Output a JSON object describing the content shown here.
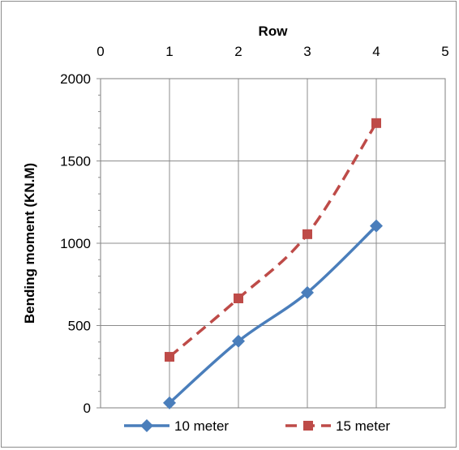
{
  "chart_data": {
    "type": "line",
    "xlabel": "Row",
    "ylabel": "Bending moment (KN.M)",
    "xlim": [
      0,
      5
    ],
    "ylim": [
      0,
      2000
    ],
    "x_ticks": [
      "0",
      "1",
      "2",
      "3",
      "4",
      "5"
    ],
    "y_ticks": [
      "0",
      "500",
      "1000",
      "1500",
      "2000"
    ],
    "x_axis_position": "top",
    "grid": true,
    "legend_position": "bottom",
    "series": [
      {
        "name": "10 meter",
        "x": [
          1,
          2,
          3,
          4
        ],
        "values": [
          30,
          405,
          700,
          1105
        ],
        "color": "#4a7ebb",
        "marker": "diamond",
        "line_style": "solid"
      },
      {
        "name": "15 meter",
        "x": [
          1,
          2,
          3,
          4
        ],
        "values": [
          310,
          665,
          1055,
          1730
        ],
        "color": "#be4b48",
        "marker": "square",
        "line_style": "dashed"
      }
    ]
  }
}
